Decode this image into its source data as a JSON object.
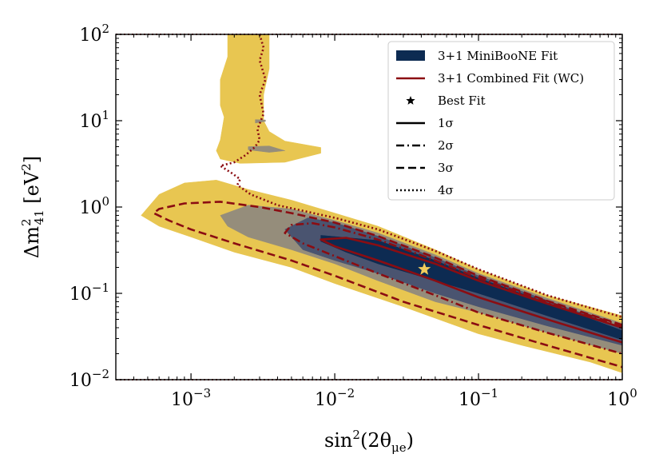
{
  "chart_data": {
    "type": "contour",
    "x_scale": "log",
    "y_scale": "log",
    "xlim": [
      0.0003,
      1
    ],
    "ylim": [
      0.01,
      100
    ],
    "xlabel": {
      "base": "sin",
      "sup": "2",
      "rest": "(2θ",
      "sub": "μe",
      "end": ")"
    },
    "ylabel": {
      "pre": "Δm",
      "sup": "2",
      "sub": "41",
      "post": " [eV",
      "unit_sup": "2",
      "end": "]"
    },
    "x_ticks": [
      {
        "value": 0.001,
        "base": "10",
        "exp": "−3"
      },
      {
        "value": 0.01,
        "base": "10",
        "exp": "−2"
      },
      {
        "value": 0.1,
        "base": "10",
        "exp": "−1"
      },
      {
        "value": 1,
        "base": "10",
        "exp": "0"
      }
    ],
    "y_ticks": [
      {
        "value": 0.01,
        "base": "10",
        "exp": "−2"
      },
      {
        "value": 0.1,
        "base": "10",
        "exp": "−1"
      },
      {
        "value": 1,
        "base": "10",
        "exp": "0"
      },
      {
        "value": 10,
        "base": "10",
        "exp": "1"
      },
      {
        "value": 100,
        "base": "10",
        "exp": "2"
      }
    ],
    "colors": {
      "sigma1": "#0d2b52",
      "sigma2": "#4a5470",
      "sigma3": "#958d7b",
      "sigma4": "#e8c651",
      "combined": "#8b0d12",
      "best_fit": "#f2cd5c"
    },
    "best_fit_point": {
      "x": 0.042,
      "y": 0.19
    },
    "miniboone_regions": [
      {
        "level": "4σ",
        "fill": "sigma4",
        "polygons": [
          [
            [
              0.00045,
              0.8
            ],
            [
              0.0006,
              1.4
            ],
            [
              0.0009,
              1.9
            ],
            [
              0.0015,
              2.05
            ],
            [
              0.0025,
              1.6
            ],
            [
              0.005,
              1.2
            ],
            [
              0.01,
              0.85
            ],
            [
              0.02,
              0.6
            ],
            [
              0.05,
              0.32
            ],
            [
              0.1,
              0.19
            ],
            [
              0.3,
              0.095
            ],
            [
              1,
              0.055
            ],
            [
              1,
              0.012
            ],
            [
              0.6,
              0.016
            ],
            [
              0.2,
              0.025
            ],
            [
              0.1,
              0.034
            ],
            [
              0.03,
              0.07
            ],
            [
              0.01,
              0.13
            ],
            [
              0.005,
              0.2
            ],
            [
              0.002,
              0.3
            ],
            [
              0.001,
              0.45
            ],
            [
              0.0006,
              0.6
            ]
          ],
          [
            [
              0.0016,
              3.6
            ],
            [
              0.0022,
              3.2
            ],
            [
              0.0045,
              3.3
            ],
            [
              0.008,
              4.2
            ],
            [
              0.008,
              4.9
            ],
            [
              0.0045,
              5.8
            ],
            [
              0.0035,
              7.5
            ],
            [
              0.0032,
              10
            ],
            [
              0.0032,
              20
            ],
            [
              0.0035,
              40
            ],
            [
              0.0035,
              100
            ],
            [
              0.0018,
              100
            ],
            [
              0.0018,
              55
            ],
            [
              0.0016,
              30
            ],
            [
              0.0016,
              15
            ],
            [
              0.0017,
              11
            ],
            [
              0.0016,
              6
            ],
            [
              0.0015,
              4.5
            ]
          ]
        ]
      },
      {
        "level": "3σ",
        "fill": "sigma3",
        "polygons": [
          [
            [
              0.0016,
              0.8
            ],
            [
              0.0025,
              1.05
            ],
            [
              0.005,
              0.95
            ],
            [
              0.01,
              0.7
            ],
            [
              0.02,
              0.5
            ],
            [
              0.05,
              0.28
            ],
            [
              0.1,
              0.17
            ],
            [
              0.3,
              0.088
            ],
            [
              1,
              0.045
            ],
            [
              1,
              0.02
            ],
            [
              0.3,
              0.035
            ],
            [
              0.1,
              0.06
            ],
            [
              0.05,
              0.08
            ],
            [
              0.02,
              0.14
            ],
            [
              0.01,
              0.22
            ],
            [
              0.005,
              0.32
            ],
            [
              0.0025,
              0.45
            ],
            [
              0.0018,
              0.6
            ]
          ],
          [
            [
              0.0028,
              9.4
            ],
            [
              0.0033,
              9.8
            ],
            [
              0.0033,
              10.2
            ],
            [
              0.0028,
              10.3
            ]
          ],
          [
            [
              0.0025,
              4.6
            ],
            [
              0.0035,
              4.3
            ],
            [
              0.0045,
              4.5
            ],
            [
              0.0035,
              5.1
            ],
            [
              0.0025,
              5.0
            ]
          ]
        ]
      },
      {
        "level": "2σ",
        "fill": "sigma2",
        "polygons": [
          [
            [
              0.0045,
              0.55
            ],
            [
              0.0065,
              0.75
            ],
            [
              0.01,
              0.66
            ],
            [
              0.02,
              0.46
            ],
            [
              0.05,
              0.26
            ],
            [
              0.1,
              0.16
            ],
            [
              0.3,
              0.083
            ],
            [
              1,
              0.04
            ],
            [
              1,
              0.025
            ],
            [
              0.3,
              0.042
            ],
            [
              0.1,
              0.07
            ],
            [
              0.05,
              0.1
            ],
            [
              0.02,
              0.17
            ],
            [
              0.01,
              0.24
            ],
            [
              0.006,
              0.32
            ]
          ]
        ]
      },
      {
        "level": "1σ",
        "fill": "sigma1",
        "polygons": [
          [
            [
              0.008,
              0.47
            ],
            [
              0.02,
              0.41
            ],
            [
              0.05,
              0.24
            ],
            [
              0.1,
              0.15
            ],
            [
              0.3,
              0.078
            ],
            [
              1,
              0.037
            ],
            [
              1,
              0.029
            ],
            [
              0.3,
              0.055
            ],
            [
              0.1,
              0.1
            ],
            [
              0.05,
              0.14
            ],
            [
              0.02,
              0.22
            ],
            [
              0.012,
              0.3
            ],
            [
              0.008,
              0.4
            ]
          ]
        ]
      }
    ],
    "combined_contours": [
      {
        "level": "4σ",
        "style": "dotted",
        "points": [
          [
            0.003,
            100
          ],
          [
            0.0032,
            70
          ],
          [
            0.003,
            50
          ],
          [
            0.0033,
            30
          ],
          [
            0.003,
            20
          ],
          [
            0.0032,
            12
          ],
          [
            0.0029,
            8
          ],
          [
            0.003,
            6
          ],
          [
            0.0028,
            5
          ],
          [
            0.0024,
            4
          ],
          [
            0.002,
            3.3
          ],
          [
            0.0016,
            3
          ],
          [
            0.0019,
            2.5
          ],
          [
            0.0022,
            2.1
          ],
          [
            0.0021,
            1.8
          ],
          [
            0.0026,
            1.4
          ],
          [
            0.004,
            1.05
          ],
          [
            0.01,
            0.75
          ],
          [
            0.02,
            0.55
          ],
          [
            0.05,
            0.31
          ],
          [
            0.1,
            0.19
          ],
          [
            0.3,
            0.095
          ],
          [
            1,
            0.053
          ]
        ]
      },
      {
        "level": "3σ",
        "style": "dashed",
        "points": [
          [
            1,
            0.043
          ],
          [
            0.3,
            0.082
          ],
          [
            0.1,
            0.16
          ],
          [
            0.05,
            0.26
          ],
          [
            0.02,
            0.46
          ],
          [
            0.01,
            0.66
          ],
          [
            0.005,
            0.85
          ],
          [
            0.003,
            1.0
          ],
          [
            0.0016,
            1.15
          ],
          [
            0.0009,
            1.1
          ],
          [
            0.0006,
            0.95
          ],
          [
            0.00055,
            0.85
          ],
          [
            0.0007,
            0.7
          ],
          [
            0.001,
            0.55
          ],
          [
            0.002,
            0.38
          ],
          [
            0.005,
            0.24
          ],
          [
            0.01,
            0.16
          ],
          [
            0.03,
            0.08
          ],
          [
            0.1,
            0.043
          ],
          [
            0.3,
            0.025
          ],
          [
            1,
            0.014
          ]
        ]
      },
      {
        "level": "2σ",
        "style": "dashdot",
        "points": [
          [
            1,
            0.042
          ],
          [
            0.3,
            0.08
          ],
          [
            0.1,
            0.15
          ],
          [
            0.05,
            0.24
          ],
          [
            0.02,
            0.42
          ],
          [
            0.01,
            0.58
          ],
          [
            0.007,
            0.65
          ],
          [
            0.005,
            0.62
          ],
          [
            0.0045,
            0.5
          ],
          [
            0.006,
            0.38
          ],
          [
            0.01,
            0.27
          ],
          [
            0.02,
            0.17
          ],
          [
            0.05,
            0.095
          ],
          [
            0.1,
            0.06
          ],
          [
            0.3,
            0.035
          ],
          [
            1,
            0.02
          ]
        ]
      },
      {
        "level": "1σ",
        "style": "solid",
        "points": [
          [
            1,
            0.04
          ],
          [
            0.3,
            0.076
          ],
          [
            0.1,
            0.14
          ],
          [
            0.05,
            0.22
          ],
          [
            0.02,
            0.36
          ],
          [
            0.012,
            0.44
          ],
          [
            0.008,
            0.42
          ],
          [
            0.01,
            0.35
          ],
          [
            0.02,
            0.24
          ],
          [
            0.05,
            0.14
          ],
          [
            0.1,
            0.09
          ],
          [
            0.3,
            0.05
          ],
          [
            1,
            0.027
          ]
        ]
      }
    ],
    "boundary_lines": [
      {
        "y": 100,
        "x_from": 0.0003,
        "x_to": 1
      },
      {
        "y": 0.01,
        "x_from": 0.0003,
        "x_to": 1
      }
    ],
    "legend": {
      "position": "top-right",
      "entries": [
        {
          "label": "3+1 MiniBooNE Fit",
          "kind": "patch"
        },
        {
          "label": "3+1 Combined Fit (WC)",
          "kind": "line"
        },
        {
          "label": "Best Fit",
          "kind": "star"
        },
        {
          "label": "1σ",
          "kind": "solid"
        },
        {
          "label": "2σ",
          "kind": "dashdot"
        },
        {
          "label": "3σ",
          "kind": "dashed"
        },
        {
          "label": "4σ",
          "kind": "dotted"
        }
      ]
    }
  }
}
